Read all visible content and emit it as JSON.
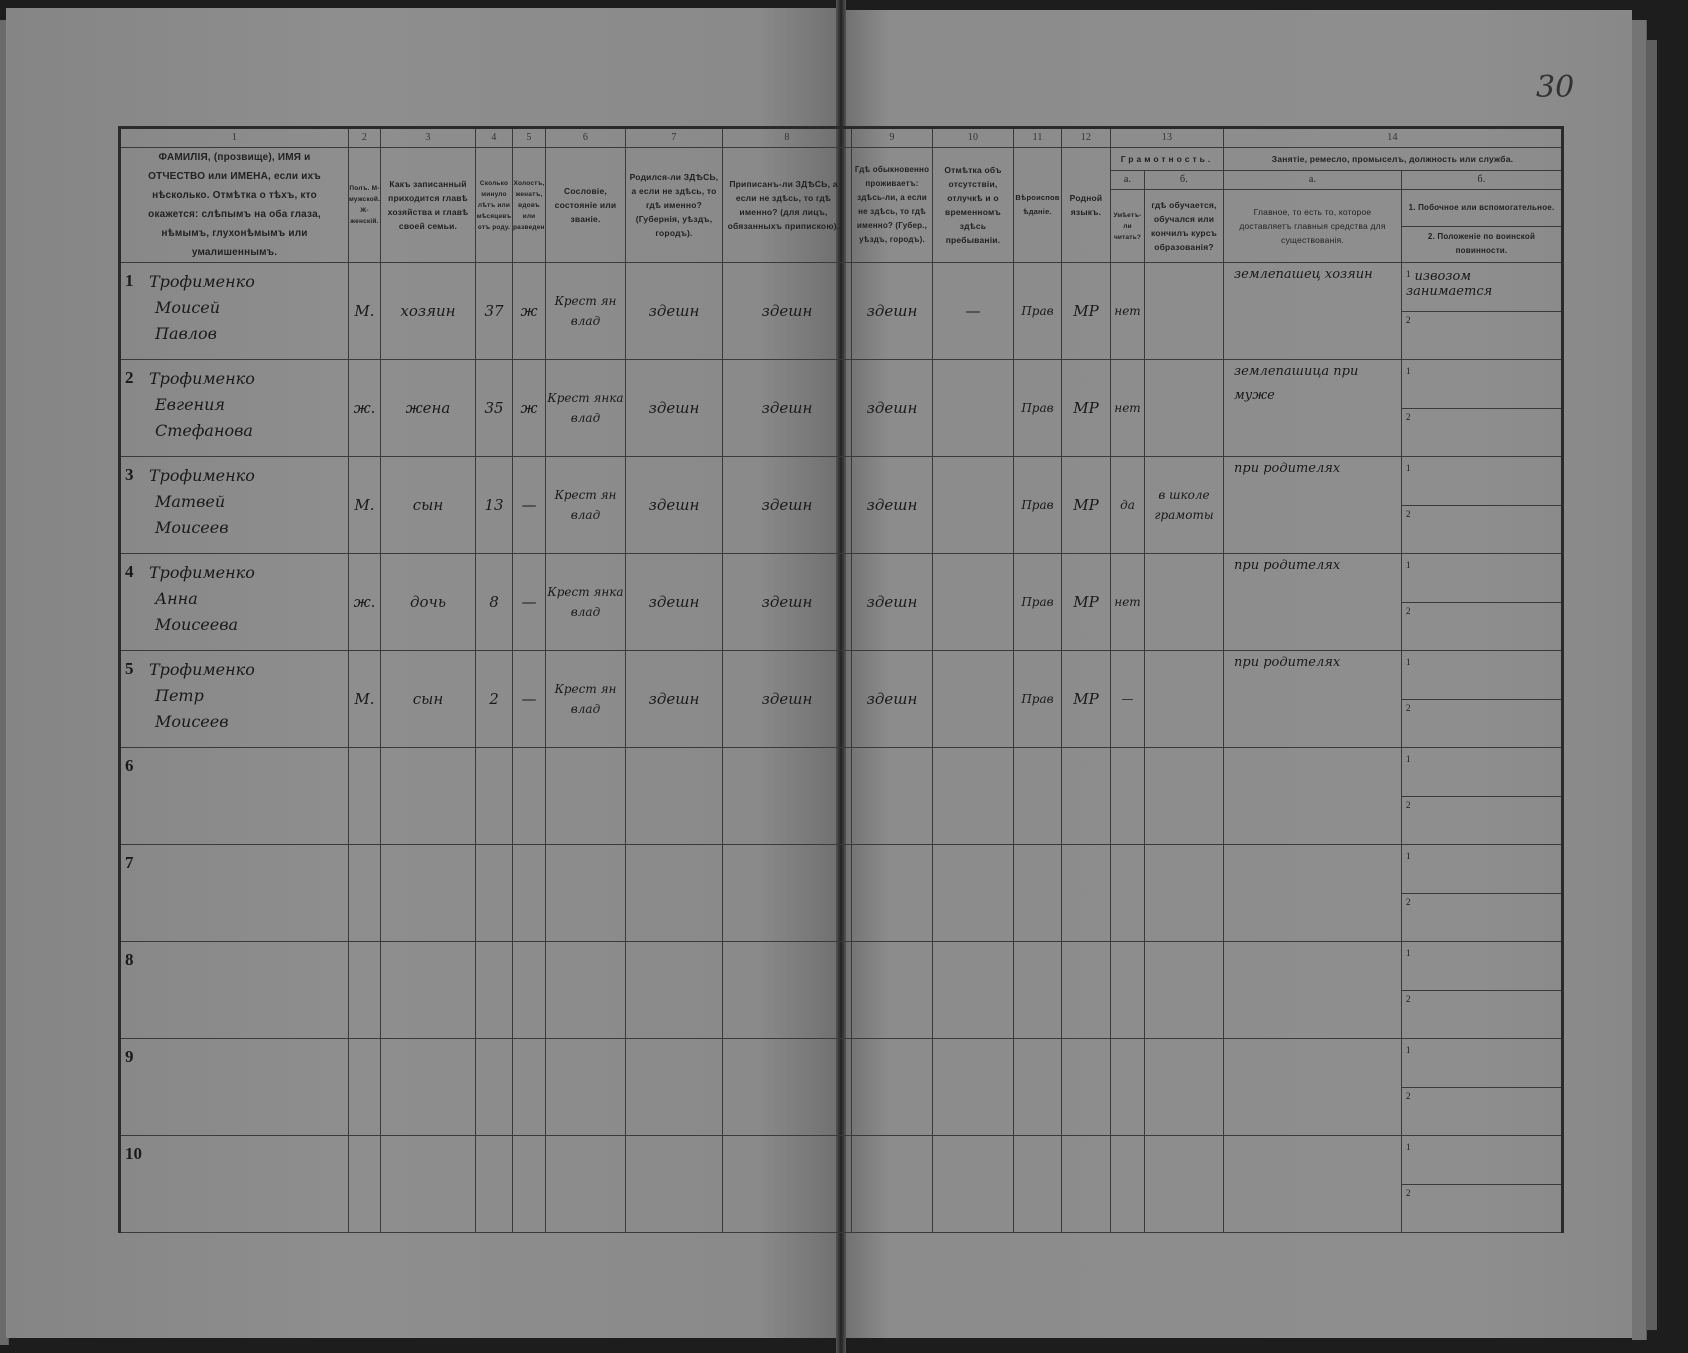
{
  "page_number": "30",
  "header": {
    "col_numbers": [
      "1",
      "2",
      "3",
      "4",
      "5",
      "6",
      "7",
      "8",
      "9",
      "10",
      "11",
      "12",
      "13",
      "14"
    ],
    "col1": "ФАМИЛІЯ, (прозвище), ИМЯ и ОТЧЕСТВО или ИМЕНА, если ихъ нѣсколько. Отмѣтка о тѣхъ, кто окажется: слѣпымъ на оба глаза, нѣмымъ, глухонѣмымъ или умалишеннымъ.",
    "col2": "Полъ. М-мужской. Ж-женскій.",
    "col3": "Какъ записанный приходится главѣ хозяйства и главѣ своей семьи.",
    "col4": "Сколько минуло лѣтъ или мѣсяцевъ отъ роду.",
    "col5": "Холостъ, женатъ, вдовъ или разведенъ.",
    "col6": "Сословіе, состояніе или званіе.",
    "col7": "Родился-ли ЗДѢСЬ, а если не здѣсь, то гдѣ именно? (Губернія, уѣздъ, городъ).",
    "col8": "Приписанъ-ли ЗДѢСЬ, а если не здѣсь, то гдѣ именно? (для лицъ, обязанныхъ припискою).",
    "col9": "Гдѣ обыкновенно проживаетъ: здѣсь-ли, а если не здѣсь, то гдѣ именно? (Губер., уѣздъ, городъ).",
    "col10": "Отмѣтка объ отсутствіи, отлучкѣ и о временномъ здѣсь пребываніи.",
    "col11": "Вѣроисповѣданіе.",
    "col12": "Родной языкъ.",
    "col13": "Грамотность.",
    "col13a_letter": "а.",
    "col13a": "Умѣетъ-ли читать?",
    "col13b_letter": "б.",
    "col13b": "гдѣ обучается, обучался или кончилъ курсъ образованія?",
    "col14": "Занятіе, ремесло, промыселъ, должность или служба.",
    "col14a_letter": "а.",
    "col14a": "Главное, то есть то, которое доставляетъ главныя средства для существованія.",
    "col14b_letter": "б.",
    "col14b_1": "1. Побочное или вспомогательное.",
    "col14b_2": "2. Положеніе по воинской повинности."
  },
  "rows": [
    {
      "num": "1",
      "surname": "Трофименко",
      "first": "Моисей",
      "patronymic": "Павлов",
      "sex": "М.",
      "relation": "хозяин",
      "age": "37",
      "marital": "ж",
      "estate": "Крест ян влад",
      "born": "здешн",
      "registered": "здешн",
      "resides": "здешн",
      "absence": "—",
      "religion": "Прав",
      "language": "МР",
      "reads": "нет",
      "school": "",
      "occupation": "землепашец хозяин",
      "side_label": "1",
      "side": "извозом занимается",
      "military_label": "2",
      "military": ""
    },
    {
      "num": "2",
      "surname": "Трофименко",
      "first": "Евгения",
      "patronymic": "Стефанова",
      "sex": "ж.",
      "relation": "жена",
      "age": "35",
      "marital": "ж",
      "estate": "Крест янка влад",
      "born": "здешн",
      "registered": "здешн",
      "resides": "здешн",
      "absence": "",
      "religion": "Прав",
      "language": "МР",
      "reads": "нет",
      "school": "",
      "occupation": "землепашица при муже",
      "side_label": "1",
      "side": "",
      "military_label": "2",
      "military": ""
    },
    {
      "num": "3",
      "surname": "Трофименко",
      "first": "Матвей",
      "patronymic": "Моисеев",
      "sex": "М.",
      "relation": "сын",
      "age": "13",
      "marital": "—",
      "estate": "Крест ян влад",
      "born": "здешн",
      "registered": "здешн",
      "resides": "здешн",
      "absence": "",
      "religion": "Прав",
      "language": "МР",
      "reads": "да",
      "school": "в школе грамоты",
      "occupation": "при родителях",
      "side_label": "1",
      "side": "",
      "military_label": "2",
      "military": ""
    },
    {
      "num": "4",
      "surname": "Трофименко",
      "first": "Анна",
      "patronymic": "Моисеева",
      "sex": "ж.",
      "relation": "дочь",
      "age": "8",
      "marital": "—",
      "estate": "Крест янка влад",
      "born": "здешн",
      "registered": "здешн",
      "resides": "здешн",
      "absence": "",
      "religion": "Прав",
      "language": "МР",
      "reads": "нет",
      "school": "",
      "occupation": "при родителях",
      "side_label": "1",
      "side": "",
      "military_label": "2",
      "military": ""
    },
    {
      "num": "5",
      "surname": "Трофименко",
      "first": "Петр",
      "patronymic": "Моисеев",
      "sex": "М.",
      "relation": "сын",
      "age": "2",
      "marital": "—",
      "estate": "Крест ян влад",
      "born": "здешн",
      "registered": "здешн",
      "resides": "здешн",
      "absence": "",
      "religion": "Прав",
      "language": "МР",
      "reads": "—",
      "school": "",
      "occupation": "при родителях",
      "side_label": "1",
      "side": "",
      "military_label": "2",
      "military": ""
    },
    {
      "num": "6",
      "side_label": "1",
      "military_label": "2"
    },
    {
      "num": "7",
      "side_label": "1",
      "military_label": "2"
    },
    {
      "num": "8",
      "side_label": "1",
      "military_label": "2"
    },
    {
      "num": "9",
      "side_label": "1",
      "military_label": "2"
    },
    {
      "num": "10",
      "side_label": "1",
      "military_label": "2"
    }
  ]
}
